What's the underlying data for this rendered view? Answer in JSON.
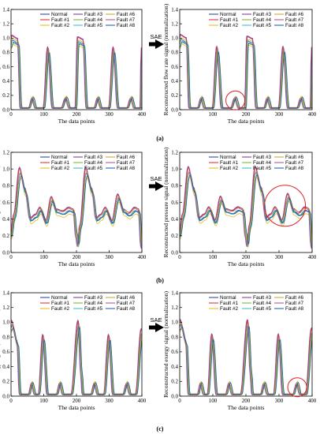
{
  "figure": {
    "arrow_label": "SAE",
    "xlabel": "The data points",
    "panel_labels": [
      "(a)",
      "(b)",
      "(c)"
    ]
  },
  "legend": [
    "Normal",
    "Fault #1",
    "Fault #2",
    "Fault #3",
    "Fault #4",
    "Fault #5",
    "Fault #6",
    "Fault #7",
    "Fault #8"
  ],
  "series_colors": [
    "#1f3a93",
    "#e0202a",
    "#e8b400",
    "#7a2d8c",
    "#6bb62a",
    "#2fb7c8",
    "#c9a020",
    "#b1488a",
    "#0c57b8"
  ],
  "chart_data": [
    {
      "type": "line",
      "id": "flow-original",
      "ylabel": "Flow rate signal (normalization)",
      "xlim": [
        0,
        400
      ],
      "ylim": [
        0,
        1.4
      ],
      "xticks": [
        0,
        100,
        200,
        300,
        400
      ],
      "yticks": [
        0,
        0.2,
        0.4,
        0.6,
        0.8,
        1.0,
        1.2,
        1.4
      ],
      "signal": "flow",
      "circle": null
    },
    {
      "type": "line",
      "id": "flow-reconstructed",
      "ylabel": "Reconstructed flow rate signal (normalization)",
      "xlim": [
        0,
        400
      ],
      "ylim": [
        0,
        1.4
      ],
      "xticks": [
        0,
        100,
        200,
        300,
        400
      ],
      "yticks": [
        0,
        0.2,
        0.4,
        0.6,
        0.8,
        1.0,
        1.2,
        1.4
      ],
      "signal": "flow",
      "circle": {
        "x": 168,
        "y": 0.13
      }
    },
    {
      "type": "line",
      "id": "pressure-original",
      "ylabel": "Pressure signal (normalization)",
      "xlim": [
        0,
        400
      ],
      "ylim": [
        0,
        1.2
      ],
      "xticks": [
        0,
        100,
        200,
        300,
        400
      ],
      "yticks": [
        0,
        0.2,
        0.4,
        0.6,
        0.8,
        1.0,
        1.2
      ],
      "signal": "pressure",
      "circle": null
    },
    {
      "type": "line",
      "id": "pressure-reconstructed",
      "ylabel": "Reconstructed pressure signal (normalization)",
      "xlim": [
        0,
        400
      ],
      "ylim": [
        0,
        1.2
      ],
      "xticks": [
        0,
        100,
        200,
        300,
        400
      ],
      "yticks": [
        0,
        0.2,
        0.4,
        0.6,
        0.8,
        1.0,
        1.2
      ],
      "signal": "pressure",
      "circle": {
        "x": 318,
        "y": 0.56
      }
    },
    {
      "type": "line",
      "id": "exergy-original",
      "ylabel": "Exergy signal (normalization)",
      "xlim": [
        0,
        400
      ],
      "ylim": [
        0,
        1.4
      ],
      "xticks": [
        0,
        100,
        200,
        300,
        400
      ],
      "yticks": [
        0,
        0.2,
        0.4,
        0.6,
        0.8,
        1.0,
        1.2,
        1.4
      ],
      "signal": "exergy",
      "circle": null
    },
    {
      "type": "line",
      "id": "exergy-reconstructed",
      "ylabel": "Reconstructed exergy signal (normalization)",
      "xlim": [
        0,
        400
      ],
      "ylim": [
        0,
        1.4
      ],
      "xticks": [
        0,
        100,
        200,
        300,
        400
      ],
      "yticks": [
        0,
        0.2,
        0.4,
        0.6,
        0.8,
        1.0,
        1.2,
        1.4
      ],
      "signal": "exergy",
      "circle": {
        "x": 355,
        "y": 0.12
      }
    }
  ],
  "signal_keypoints": {
    "flow": [
      [
        0,
        0.9
      ],
      [
        3,
        0.97
      ],
      [
        22,
        0.93
      ],
      [
        30,
        0.02
      ],
      [
        55,
        0.02
      ],
      [
        66,
        0.15
      ],
      [
        76,
        0.02
      ],
      [
        100,
        0.02
      ],
      [
        114,
        0.82
      ],
      [
        128,
        0.02
      ],
      [
        155,
        0.02
      ],
      [
        168,
        0.15
      ],
      [
        180,
        0.02
      ],
      [
        198,
        0.02
      ],
      [
        205,
        0.95
      ],
      [
        222,
        0.92
      ],
      [
        232,
        0.02
      ],
      [
        255,
        0.02
      ],
      [
        266,
        0.15
      ],
      [
        276,
        0.02
      ],
      [
        300,
        0.02
      ],
      [
        314,
        0.82
      ],
      [
        328,
        0.02
      ],
      [
        355,
        0.02
      ],
      [
        368,
        0.15
      ],
      [
        378,
        0.02
      ],
      [
        397,
        0.02
      ],
      [
        400,
        0.8
      ]
    ],
    "pressure": [
      [
        0,
        0.18
      ],
      [
        10,
        0.42
      ],
      [
        28,
        0.95
      ],
      [
        44,
        0.72
      ],
      [
        60,
        0.38
      ],
      [
        76,
        0.42
      ],
      [
        90,
        0.5
      ],
      [
        108,
        0.35
      ],
      [
        125,
        0.62
      ],
      [
        140,
        0.48
      ],
      [
        160,
        0.46
      ],
      [
        178,
        0.5
      ],
      [
        192,
        0.48
      ],
      [
        200,
        0.2
      ],
      [
        205,
        0.08
      ],
      [
        212,
        0.3
      ],
      [
        230,
        0.95
      ],
      [
        248,
        0.72
      ],
      [
        262,
        0.38
      ],
      [
        276,
        0.42
      ],
      [
        290,
        0.5
      ],
      [
        310,
        0.35
      ],
      [
        328,
        0.65
      ],
      [
        345,
        0.48
      ],
      [
        362,
        0.44
      ],
      [
        380,
        0.5
      ],
      [
        392,
        0.48
      ],
      [
        398,
        0.12
      ],
      [
        400,
        0.05
      ]
    ],
    "exergy": [
      [
        0,
        0.92
      ],
      [
        3,
        0.96
      ],
      [
        20,
        0.7
      ],
      [
        28,
        0.02
      ],
      [
        55,
        0.02
      ],
      [
        64,
        0.16
      ],
      [
        74,
        0.02
      ],
      [
        85,
        0.02
      ],
      [
        99,
        0.78
      ],
      [
        112,
        0.02
      ],
      [
        140,
        0.02
      ],
      [
        150,
        0.16
      ],
      [
        160,
        0.02
      ],
      [
        185,
        0.02
      ],
      [
        207,
        0.96
      ],
      [
        215,
        0.3
      ],
      [
        220,
        0.02
      ],
      [
        245,
        0.02
      ],
      [
        256,
        0.16
      ],
      [
        266,
        0.02
      ],
      [
        285,
        0.02
      ],
      [
        300,
        0.78
      ],
      [
        313,
        0.02
      ],
      [
        343,
        0.02
      ],
      [
        355,
        0.16
      ],
      [
        365,
        0.02
      ],
      [
        382,
        0.02
      ],
      [
        400,
        0.85
      ]
    ]
  }
}
